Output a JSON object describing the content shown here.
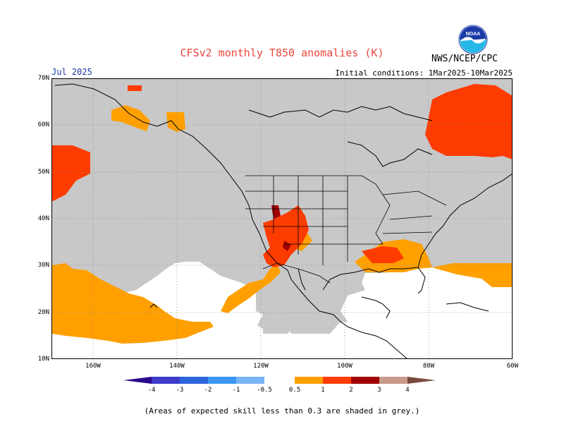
{
  "title": "CFSv2 monthly T850 anomalies (K)",
  "org": "NWS/NCEP/CPC",
  "logo_text": "NOAA",
  "month": "Jul 2025",
  "initial_conditions": "Initial conditions: 1Mar2025-10Mar2025",
  "caption": "(Areas of expected skill less than 0.3 are shaded in grey.)",
  "map": {
    "lon_range": [
      -170,
      -60
    ],
    "lat_range": [
      10,
      70
    ],
    "y_ticks": [
      "70N",
      "60N",
      "50N",
      "40N",
      "30N",
      "20N",
      "10N"
    ],
    "x_ticks": [
      "160W",
      "140W",
      "120W",
      "100W",
      "80W",
      "60W"
    ],
    "colors": {
      "low_skill_grey": "#c8c8c8",
      "anom_0_5_to_1": "#ffa000",
      "anom_1_to_2": "#ff3c00",
      "anom_2_to_3": "#a00000",
      "land_outline": "#000000"
    }
  },
  "colorbar": {
    "labels": [
      "-4",
      "-3",
      "-2",
      "-1",
      "-0.5",
      "0.5",
      "1",
      "2",
      "3",
      "4"
    ],
    "colors": [
      "#2a0a8c",
      "#3c3cc8",
      "#2d64dc",
      "#3c96f0",
      "#78b4f8",
      "#ffffff",
      "#ffa000",
      "#ff3c00",
      "#a00000",
      "#c89a8c",
      "#7a4a3c"
    ]
  }
}
